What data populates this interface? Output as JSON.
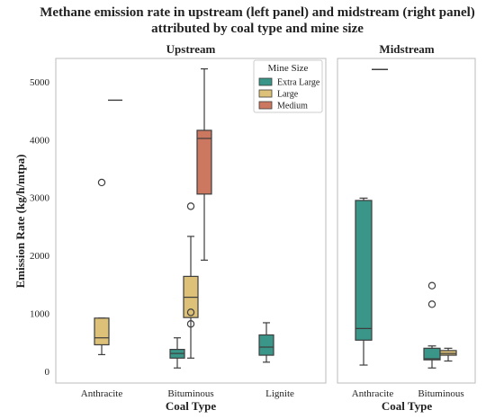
{
  "chart_data": {
    "type": "boxplot",
    "title_line1": "Methane emission rate in upstream (left panel) and midstream (right panel)",
    "title_line2": "attributed by coal type and mine size",
    "ylabel": "Emission Rate (kg/h/mtpa)",
    "ylim": [
      -200,
      5400
    ],
    "yticks": [
      0,
      1000,
      2000,
      3000,
      4000,
      5000
    ],
    "legend": {
      "title": "Mine Size",
      "placement": "top-right of Upstream panel",
      "entries": [
        {
          "name": "Extra Large",
          "color": "#3a9688"
        },
        {
          "name": "Large",
          "color": "#ddc178"
        },
        {
          "name": "Medium",
          "color": "#cc7760"
        }
      ]
    },
    "panels": [
      {
        "title": "Upstream",
        "xlabel": "Coal Type",
        "categories": [
          "Anthracite",
          "Bituminous",
          "Lignite"
        ],
        "boxes": [
          {
            "category": "Anthracite",
            "size": "Large",
            "whisker_low": 290,
            "q1": 460,
            "median": 580,
            "q3": 920,
            "whisker_high": 920,
            "outliers": [
              3260
            ]
          },
          {
            "category": "Anthracite",
            "size": "Medium",
            "whisker_low": 4680,
            "q1": 4680,
            "median": 4680,
            "q3": 4680,
            "whisker_high": 4680,
            "outliers": []
          },
          {
            "category": "Bituminous",
            "size": "Extra Large",
            "whisker_low": 60,
            "q1": 230,
            "median": 310,
            "q3": 380,
            "whisker_high": 580,
            "outliers": []
          },
          {
            "category": "Bituminous",
            "size": "Large",
            "whisker_low": 230,
            "q1": 930,
            "median": 1280,
            "q3": 1640,
            "whisker_high": 2330,
            "outliers": [
              820,
              1020,
              2850
            ]
          },
          {
            "category": "Bituminous",
            "size": "Medium",
            "whisker_low": 1920,
            "q1": 3060,
            "median": 4020,
            "q3": 4160,
            "whisker_high": 5220,
            "outliers": []
          },
          {
            "category": "Lignite",
            "size": "Extra Large",
            "whisker_low": 160,
            "q1": 280,
            "median": 420,
            "q3": 630,
            "whisker_high": 840,
            "outliers": []
          }
        ]
      },
      {
        "title": "Midstream",
        "xlabel": "Coal Type",
        "categories": [
          "Anthracite",
          "Bituminous"
        ],
        "boxes": [
          {
            "category": "Anthracite",
            "size": "Extra Large",
            "whisker_low": 110,
            "q1": 540,
            "median": 740,
            "q3": 2950,
            "whisker_high": 2990,
            "outliers": []
          },
          {
            "category": "Anthracite",
            "size": "Medium",
            "whisker_low": 5210,
            "q1": 5210,
            "median": 5210,
            "q3": 5210,
            "whisker_high": 5210,
            "outliers": []
          },
          {
            "category": "Bituminous",
            "size": "Extra Large",
            "whisker_low": 60,
            "q1": 200,
            "median": 220,
            "q3": 400,
            "whisker_high": 440,
            "outliers": [
              1160,
              1480
            ]
          },
          {
            "category": "Bituminous",
            "size": "Large",
            "whisker_low": 180,
            "q1": 280,
            "median": 310,
            "q3": 360,
            "whisker_high": 400,
            "outliers": []
          }
        ]
      }
    ]
  }
}
